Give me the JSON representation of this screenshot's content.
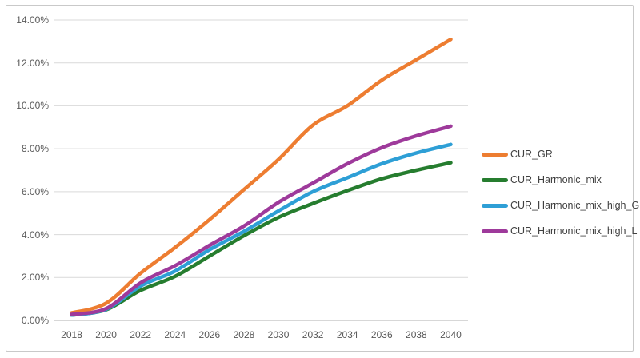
{
  "frame": {
    "background": "#ffffff",
    "border_color": "#c9c9c9"
  },
  "chart_data": {
    "type": "line",
    "title": "",
    "xlabel": "",
    "ylabel": "",
    "grid": true,
    "legend_position": "right",
    "gridline_color": "#d9d9d9",
    "axis_line_color": "#bfbfbf",
    "tick_label_color": "#595959",
    "legend_text_color": "#404040",
    "categories": [
      "2018",
      "2020",
      "2022",
      "2024",
      "2026",
      "2028",
      "2030",
      "2032",
      "2034",
      "2036",
      "2038",
      "2040"
    ],
    "y_axis": {
      "min": 0,
      "max": 14,
      "format": "percent",
      "ticks": [
        {
          "value": 0,
          "label": "0.00%"
        },
        {
          "value": 2,
          "label": "2.00%"
        },
        {
          "value": 4,
          "label": "4.00%"
        },
        {
          "value": 6,
          "label": "6.00%"
        },
        {
          "value": 8,
          "label": "8.00%"
        },
        {
          "value": 10,
          "label": "10.00%"
        },
        {
          "value": 12,
          "label": "12.00%"
        },
        {
          "value": 14,
          "label": "14.00%"
        }
      ]
    },
    "series": [
      {
        "name": "CUR_GR",
        "color": "#ED7D31",
        "values": [
          0.35,
          0.8,
          2.2,
          3.4,
          4.7,
          6.1,
          7.5,
          9.1,
          10.0,
          11.2,
          12.15,
          13.1
        ]
      },
      {
        "name": "CUR_Harmonic_mix",
        "color": "#267D2F",
        "values": [
          0.25,
          0.5,
          1.4,
          2.05,
          3.0,
          3.95,
          4.8,
          5.45,
          6.05,
          6.6,
          7.0,
          7.35
        ]
      },
      {
        "name": "CUR_Harmonic_mix_high_G",
        "color": "#2E9FD6",
        "values": [
          0.25,
          0.52,
          1.6,
          2.3,
          3.3,
          4.15,
          5.1,
          6.0,
          6.65,
          7.3,
          7.8,
          8.2
        ]
      },
      {
        "name": "CUR_Harmonic_mix_high_L",
        "color": "#9E3A9B",
        "values": [
          0.28,
          0.55,
          1.75,
          2.55,
          3.5,
          4.4,
          5.5,
          6.4,
          7.3,
          8.05,
          8.6,
          9.05
        ]
      }
    ]
  }
}
